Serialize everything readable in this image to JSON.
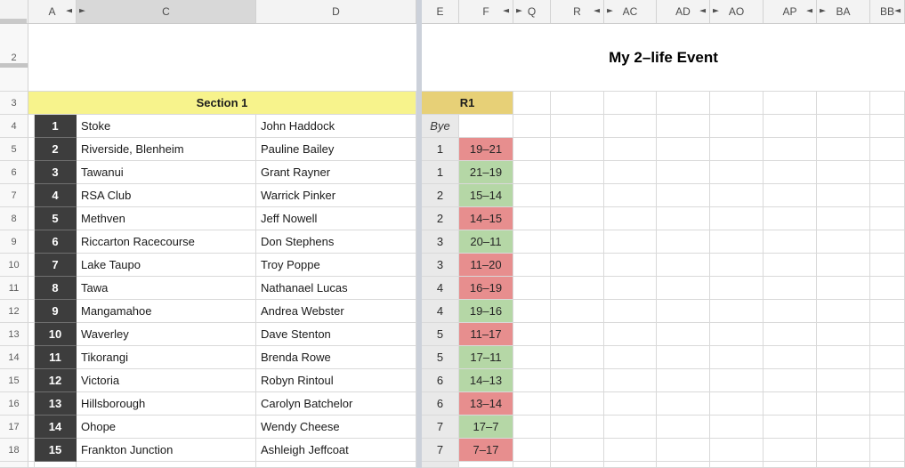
{
  "title": "My 2–life Event",
  "section": "Section 1",
  "round": "R1",
  "row2_label": "2",
  "row3_label": "3",
  "column_headers": [
    "A",
    "C",
    "D",
    "E",
    "F",
    "Q",
    "R",
    "AC",
    "AD",
    "AO",
    "AP",
    "BA",
    "BB"
  ],
  "icons": {
    "collapse_left": "◄",
    "collapse_right": "►"
  },
  "colors": {
    "section_bg": "#f7f38c",
    "round_bg": "#e7d077",
    "win_bg": "#b5d7a6",
    "loss_bg": "#e78e8e",
    "team_number_bg": "#3d3d3d",
    "game_col_bg": "#e9e9e9",
    "pane_divider": "#ccd1da"
  },
  "rows": [
    {
      "label": "4",
      "num": "1",
      "club": "Stoke",
      "player": "John Haddock",
      "game": "Bye",
      "game_class": "bye",
      "score": "",
      "result": ""
    },
    {
      "label": "5",
      "num": "2",
      "club": "Riverside, Blenheim",
      "player": "Pauline Bailey",
      "game": "1",
      "game_class": "",
      "score": "19–21",
      "result": "loss"
    },
    {
      "label": "6",
      "num": "3",
      "club": "Tawanui",
      "player": "Grant Rayner",
      "game": "1",
      "game_class": "",
      "score": "21–19",
      "result": "win"
    },
    {
      "label": "7",
      "num": "4",
      "club": "RSA Club",
      "player": "Warrick Pinker",
      "game": "2",
      "game_class": "",
      "score": "15–14",
      "result": "win"
    },
    {
      "label": "8",
      "num": "5",
      "club": "Methven",
      "player": "Jeff Nowell",
      "game": "2",
      "game_class": "",
      "score": "14–15",
      "result": "loss"
    },
    {
      "label": "9",
      "num": "6",
      "club": "Riccarton Racecourse",
      "player": "Don Stephens",
      "game": "3",
      "game_class": "",
      "score": "20–11",
      "result": "win"
    },
    {
      "label": "10",
      "num": "7",
      "club": "Lake Taupo",
      "player": "Troy Poppe",
      "game": "3",
      "game_class": "",
      "score": "11–20",
      "result": "loss"
    },
    {
      "label": "11",
      "num": "8",
      "club": "Tawa",
      "player": "Nathanael Lucas",
      "game": "4",
      "game_class": "",
      "score": "16–19",
      "result": "loss"
    },
    {
      "label": "12",
      "num": "9",
      "club": "Mangamahoe",
      "player": "Andrea Webster",
      "game": "4",
      "game_class": "",
      "score": "19–16",
      "result": "win"
    },
    {
      "label": "13",
      "num": "10",
      "club": "Waverley",
      "player": "Dave Stenton",
      "game": "5",
      "game_class": "",
      "score": "11–17",
      "result": "loss"
    },
    {
      "label": "14",
      "num": "11",
      "club": "Tikorangi",
      "player": "Brenda Rowe",
      "game": "5",
      "game_class": "",
      "score": "17–11",
      "result": "win"
    },
    {
      "label": "15",
      "num": "12",
      "club": "Victoria",
      "player": "Robyn Rintoul",
      "game": "6",
      "game_class": "",
      "score": "14–13",
      "result": "win"
    },
    {
      "label": "16",
      "num": "13",
      "club": "Hillsborough",
      "player": "Carolyn Batchelor",
      "game": "6",
      "game_class": "",
      "score": "13–14",
      "result": "loss"
    },
    {
      "label": "17",
      "num": "14",
      "club": "Ohope",
      "player": "Wendy Cheese",
      "game": "7",
      "game_class": "",
      "score": "17–7",
      "result": "win"
    },
    {
      "label": "18",
      "num": "15",
      "club": "Frankton Junction",
      "player": "Ashleigh Jeffcoat",
      "game": "7",
      "game_class": "",
      "score": "7–17",
      "result": "loss"
    }
  ]
}
